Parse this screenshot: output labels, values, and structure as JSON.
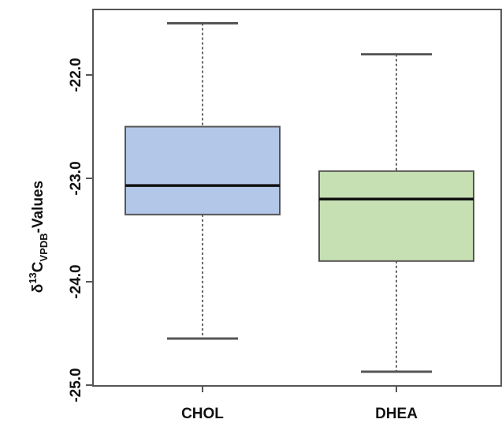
{
  "chart_data": {
    "type": "box",
    "ylabel": {
      "prefix": "δ",
      "superscript": "13",
      "main": "C",
      "subscript": "VPDB",
      "suffix": "-Values"
    },
    "xlabel": "",
    "title": "",
    "ylim": [
      -25.0,
      -21.5
    ],
    "yticks": [
      -22.0,
      -23.0,
      -24.0,
      -25.0
    ],
    "ytick_labels": [
      "-22.0",
      "-23.0",
      "-24.0",
      "-25.0"
    ],
    "categories": [
      "CHOL",
      "DHEA"
    ],
    "boxes": [
      {
        "category": "CHOL",
        "whisker_high": -21.5,
        "q3": -22.5,
        "median": -23.07,
        "q1": -23.35,
        "whisker_low": -24.55,
        "fill": "#b3c7e8",
        "stroke": "#555555"
      },
      {
        "category": "DHEA",
        "whisker_high": -21.8,
        "q3": -22.93,
        "median": -23.2,
        "q1": -23.8,
        "whisker_low": -24.87,
        "fill": "#c6e0b4",
        "stroke": "#555555"
      }
    ],
    "grid": false,
    "legend": "none"
  }
}
